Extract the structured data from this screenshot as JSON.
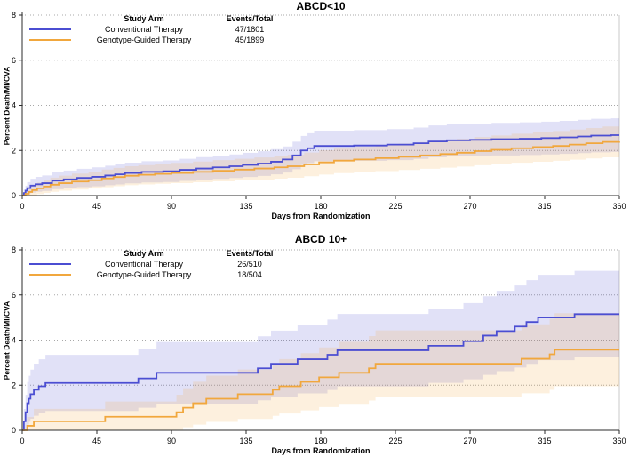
{
  "colors": {
    "conventional": "#4b4ed2",
    "genotype": "#f1a73d",
    "grid": "#a8a8a8",
    "axis": "#2b2b2b",
    "frame": "#c8c8c8",
    "background": "#ffffff"
  },
  "chart_data": [
    {
      "type": "line",
      "subtype": "kaplan-meier-cumulative-incidence-steps-with-confidence-bands",
      "title": "ABCD<10",
      "xlabel": "Days from Randomization",
      "ylabel": "Percent Death/MI/CVA",
      "xlim": [
        0,
        360
      ],
      "ylim": [
        0,
        8
      ],
      "xticks": [
        0,
        45,
        90,
        135,
        180,
        225,
        270,
        315,
        360
      ],
      "yticks": [
        0,
        2,
        4,
        6,
        8
      ],
      "grid": "horizontal dotted at yticks",
      "legend": {
        "position": "top-left inside plot",
        "study_arm_header": "Study Arm",
        "events_header": "Events/Total"
      },
      "series": [
        {
          "name": "Conventional Therapy",
          "events_total": "47/1801",
          "events": 47,
          "total": 1801,
          "color": "#4b4ed2",
          "points": [
            [
              0,
              0
            ],
            [
              1,
              0.11
            ],
            [
              2,
              0.22
            ],
            [
              3,
              0.33
            ],
            [
              5,
              0.44
            ],
            [
              8,
              0.5
            ],
            [
              12,
              0.55
            ],
            [
              18,
              0.66
            ],
            [
              25,
              0.72
            ],
            [
              33,
              0.78
            ],
            [
              42,
              0.83
            ],
            [
              50,
              0.89
            ],
            [
              56,
              0.94
            ],
            [
              62,
              1.0
            ],
            [
              72,
              1.05
            ],
            [
              85,
              1.08
            ],
            [
              95,
              1.14
            ],
            [
              105,
              1.2
            ],
            [
              115,
              1.25
            ],
            [
              125,
              1.3
            ],
            [
              133,
              1.36
            ],
            [
              142,
              1.42
            ],
            [
              150,
              1.5
            ],
            [
              157,
              1.6
            ],
            [
              163,
              1.78
            ],
            [
              168,
              2.0
            ],
            [
              172,
              2.1
            ],
            [
              176,
              2.2
            ],
            [
              200,
              2.22
            ],
            [
              220,
              2.26
            ],
            [
              236,
              2.32
            ],
            [
              245,
              2.4
            ],
            [
              256,
              2.45
            ],
            [
              270,
              2.47
            ],
            [
              283,
              2.5
            ],
            [
              300,
              2.52
            ],
            [
              313,
              2.55
            ],
            [
              324,
              2.58
            ],
            [
              335,
              2.62
            ],
            [
              343,
              2.66
            ],
            [
              355,
              2.68
            ],
            [
              360,
              2.68
            ]
          ]
        },
        {
          "name": "Genotype-Guided Therapy",
          "events_total": "45/1899",
          "events": 45,
          "total": 1899,
          "color": "#f1a73d",
          "points": [
            [
              0,
              0
            ],
            [
              2,
              0.08
            ],
            [
              4,
              0.16
            ],
            [
              6,
              0.24
            ],
            [
              9,
              0.32
            ],
            [
              13,
              0.4
            ],
            [
              17,
              0.48
            ],
            [
              22,
              0.55
            ],
            [
              30,
              0.62
            ],
            [
              40,
              0.68
            ],
            [
              48,
              0.76
            ],
            [
              55,
              0.82
            ],
            [
              62,
              0.88
            ],
            [
              70,
              0.92
            ],
            [
              80,
              0.96
            ],
            [
              90,
              1.0
            ],
            [
              103,
              1.05
            ],
            [
              115,
              1.1
            ],
            [
              128,
              1.15
            ],
            [
              140,
              1.2
            ],
            [
              152,
              1.25
            ],
            [
              160,
              1.3
            ],
            [
              170,
              1.38
            ],
            [
              179,
              1.47
            ],
            [
              188,
              1.55
            ],
            [
              200,
              1.6
            ],
            [
              213,
              1.66
            ],
            [
              227,
              1.72
            ],
            [
              240,
              1.78
            ],
            [
              252,
              1.84
            ],
            [
              262,
              1.9
            ],
            [
              273,
              1.97
            ],
            [
              283,
              2.03
            ],
            [
              295,
              2.1
            ],
            [
              308,
              2.15
            ],
            [
              320,
              2.2
            ],
            [
              330,
              2.26
            ],
            [
              340,
              2.32
            ],
            [
              350,
              2.38
            ],
            [
              360,
              2.4
            ]
          ]
        }
      ]
    },
    {
      "type": "line",
      "subtype": "kaplan-meier-cumulative-incidence-steps-with-confidence-bands",
      "title": "ABCD 10+",
      "xlabel": "Days from Randomization",
      "ylabel": "Percent Death/MI/CVA",
      "xlim": [
        0,
        360
      ],
      "ylim": [
        0,
        8
      ],
      "xticks": [
        0,
        45,
        90,
        135,
        180,
        225,
        270,
        315,
        360
      ],
      "yticks": [
        0,
        2,
        4,
        6,
        8
      ],
      "grid": "horizontal dotted at yticks",
      "legend": {
        "position": "top-left inside plot",
        "study_arm_header": "Study Arm",
        "events_header": "Events/Total"
      },
      "series": [
        {
          "name": "Conventional Therapy",
          "events_total": "26/510",
          "events": 26,
          "total": 510,
          "color": "#4b4ed2",
          "points": [
            [
              0,
              0
            ],
            [
              1,
              0.4
            ],
            [
              2,
              0.8
            ],
            [
              3,
              1.2
            ],
            [
              4,
              1.4
            ],
            [
              5,
              1.6
            ],
            [
              7,
              1.8
            ],
            [
              10,
              1.95
            ],
            [
              14,
              2.1
            ],
            [
              70,
              2.3
            ],
            [
              81,
              2.55
            ],
            [
              142,
              2.75
            ],
            [
              150,
              2.95
            ],
            [
              166,
              3.15
            ],
            [
              184,
              3.35
            ],
            [
              190,
              3.55
            ],
            [
              245,
              3.75
            ],
            [
              266,
              3.95
            ],
            [
              278,
              4.2
            ],
            [
              286,
              4.4
            ],
            [
              297,
              4.6
            ],
            [
              304,
              4.8
            ],
            [
              311,
              5.0
            ],
            [
              333,
              5.15
            ],
            [
              360,
              5.15
            ]
          ]
        },
        {
          "name": "Genotype-Guided Therapy",
          "events_total": "18/504",
          "events": 18,
          "total": 504,
          "color": "#f1a73d",
          "points": [
            [
              0,
              0
            ],
            [
              3,
              0.2
            ],
            [
              7,
              0.4
            ],
            [
              50,
              0.6
            ],
            [
              93,
              0.8
            ],
            [
              97,
              1.0
            ],
            [
              103,
              1.2
            ],
            [
              111,
              1.4
            ],
            [
              130,
              1.6
            ],
            [
              151,
              1.8
            ],
            [
              155,
              1.95
            ],
            [
              168,
              2.15
            ],
            [
              179,
              2.35
            ],
            [
              191,
              2.55
            ],
            [
              209,
              2.75
            ],
            [
              213,
              2.95
            ],
            [
              301,
              3.17
            ],
            [
              318,
              3.37
            ],
            [
              321,
              3.57
            ],
            [
              360,
              3.57
            ]
          ]
        }
      ]
    }
  ]
}
